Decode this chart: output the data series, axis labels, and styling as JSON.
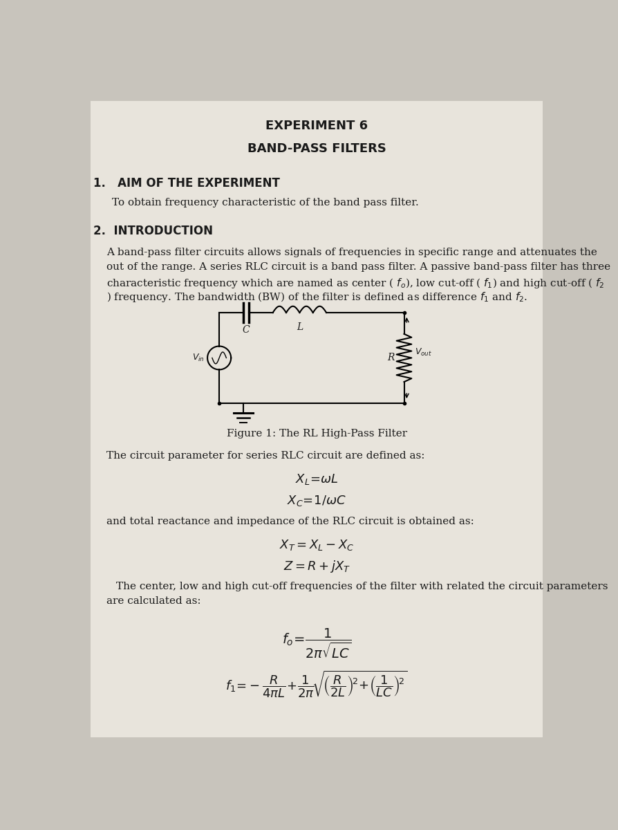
{
  "title1": "EXPERIMENT 6",
  "title2": "BAND-PASS FILTERS",
  "section1_heading": "1.   AIM OF THE EXPERIMENT",
  "section1_body": "To obtain frequency characteristic of the band pass filter.",
  "section2_heading": "2.  INTRODUCTION",
  "intro_lines": [
    "A band-pass filter circuits allows signals of frequencies in specific range and attenuates the",
    "out of the range. A series RLC circuit is a band pass filter. A passive band-pass filter has three",
    "characteristic frequency which are named as center ( $f_o$), low cut-off ( $f_1$) and high cut-off ( $f_2$",
    ") frequency. The bandwidth (BW) of the filter is defined as difference $f_1$ and $f_2$."
  ],
  "figure_caption": "Figure 1: The RL High-Pass Filter",
  "circuit_intro": "The circuit parameter for series RLC circuit are defined as:",
  "eq3_intro": "and total reactance and impedance of the RLC circuit is obtained as:",
  "freq_intro_1": "The center, low and high cut-off frequencies of the filter with related the circuit parameters",
  "freq_intro_2": "are calculated as:",
  "bg_color": "#c8c4bc",
  "text_color": "#1a1a1a",
  "page_bg": "#e8e4dc"
}
